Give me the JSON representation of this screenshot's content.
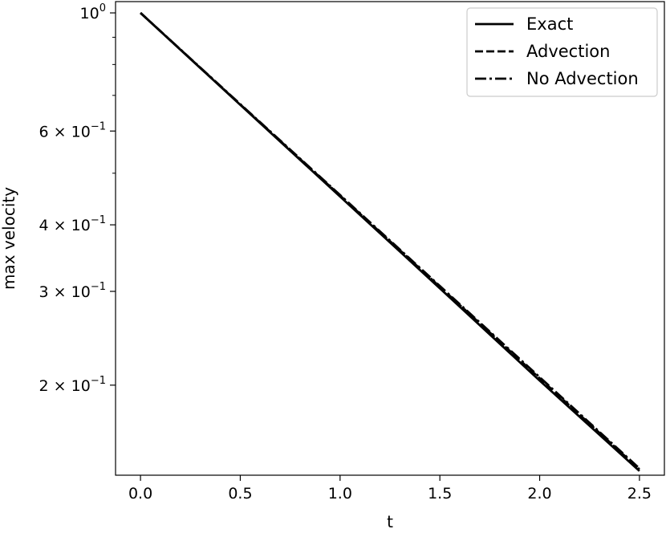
{
  "chart_data": {
    "type": "line",
    "xlabel": "t",
    "ylabel": "max velocity",
    "xlim": [
      -0.125,
      2.625
    ],
    "ylim": [
      0.1355,
      1.05
    ],
    "yscale": "log",
    "grid": false,
    "legend_position": "top-right",
    "x_ticks": [
      {
        "value": 0.0,
        "label": "0.0"
      },
      {
        "value": 0.5,
        "label": "0.5"
      },
      {
        "value": 1.0,
        "label": "1.0"
      },
      {
        "value": 1.5,
        "label": "1.5"
      },
      {
        "value": 2.0,
        "label": "2.0"
      },
      {
        "value": 2.5,
        "label": "2.5"
      }
    ],
    "y_ticks": [
      {
        "value": 1.0,
        "mantissa": "",
        "base": "10",
        "exponent": "0"
      },
      {
        "value": 0.6,
        "mantissa": "6",
        "base": "10",
        "exponent": "−1"
      },
      {
        "value": 0.4,
        "mantissa": "4",
        "base": "10",
        "exponent": "−1"
      },
      {
        "value": 0.3,
        "mantissa": "3",
        "base": "10",
        "exponent": "−1"
      },
      {
        "value": 0.2,
        "mantissa": "2",
        "base": "10",
        "exponent": "−1"
      }
    ],
    "y_minor_ticks": [
      0.5,
      0.7,
      0.8,
      0.9
    ],
    "series": [
      {
        "name": "Exact",
        "style": "solid",
        "x": [
          0,
          0.5,
          1.0,
          1.5,
          2.0,
          2.5
        ],
        "values": [
          1.0,
          0.672,
          0.452,
          0.304,
          0.204,
          0.138
        ]
      },
      {
        "name": "Advection",
        "style": "dashed",
        "x": [
          0,
          0.5,
          1.0,
          1.5,
          2.0,
          2.5
        ],
        "values": [
          1.0,
          0.673,
          0.454,
          0.306,
          0.206,
          0.139
        ]
      },
      {
        "name": "No Advection",
        "style": "dashdot",
        "x": [
          0,
          0.5,
          1.0,
          1.5,
          2.0,
          2.5
        ],
        "values": [
          1.0,
          0.674,
          0.455,
          0.307,
          0.207,
          0.1395
        ]
      }
    ]
  }
}
